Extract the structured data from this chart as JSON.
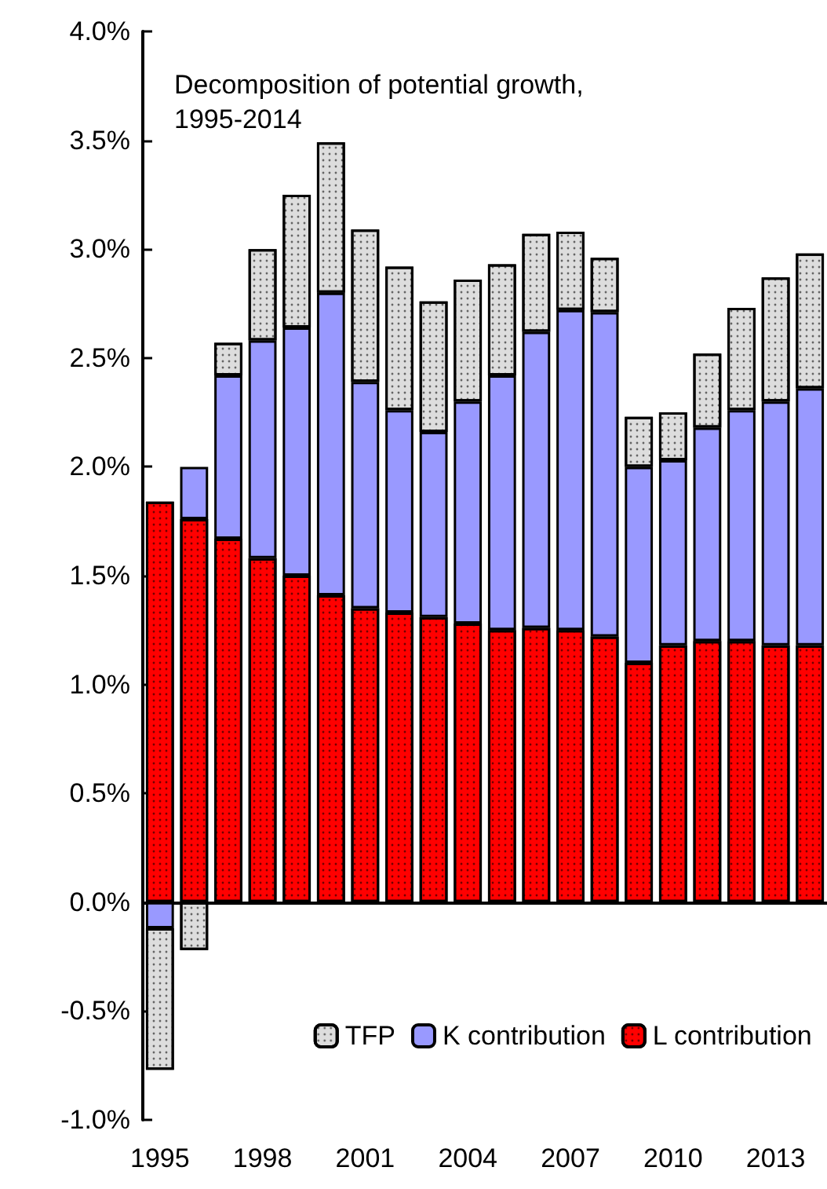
{
  "chart_data": {
    "type": "bar",
    "title": "Decomposition of potential growth, 1995-2014",
    "categories": [
      "1995",
      null,
      null,
      "1998",
      null,
      null,
      "2001",
      null,
      null,
      "2004",
      null,
      null,
      "2007",
      null,
      null,
      "2010",
      null,
      null,
      "2013",
      null
    ],
    "stacked": true,
    "series": [
      {
        "name": "L contribution",
        "color": "#ff0000",
        "values": [
          1.84,
          1.76,
          1.67,
          1.58,
          1.5,
          1.41,
          1.35,
          1.33,
          1.31,
          1.28,
          1.25,
          1.26,
          1.25,
          1.22,
          1.1,
          1.18,
          1.2,
          1.2,
          1.18,
          1.18
        ]
      },
      {
        "name": "K contribution",
        "color": "#9999ff",
        "values": [
          -0.12,
          0.24,
          0.75,
          1.0,
          1.14,
          1.39,
          1.04,
          0.93,
          0.85,
          1.02,
          1.17,
          1.36,
          1.47,
          1.49,
          0.9,
          0.85,
          0.98,
          1.06,
          1.12,
          1.18
        ]
      },
      {
        "name": "TFP",
        "color": "#dddddd",
        "values": [
          -0.65,
          -0.22,
          0.15,
          0.42,
          0.61,
          0.69,
          0.7,
          0.66,
          0.6,
          0.56,
          0.51,
          0.45,
          0.36,
          0.25,
          0.23,
          0.22,
          0.34,
          0.47,
          0.57,
          0.62
        ]
      }
    ],
    "ylim": [
      -1.0,
      4.0
    ],
    "yticks": [
      {
        "value": -1.0,
        "label": "-1.0%"
      },
      {
        "value": -0.5,
        "label": "-0.5%"
      },
      {
        "value": 0,
        "label": "0.0%"
      },
      {
        "value": 0.5,
        "label": "0.5%"
      },
      {
        "value": 1.0,
        "label": "1.0%"
      },
      {
        "value": 1.5,
        "label": "1.5%"
      },
      {
        "value": 2.0,
        "label": "2.0%"
      },
      {
        "value": 2.5,
        "label": "2.5%"
      },
      {
        "value": 3.0,
        "label": "3.0%"
      },
      {
        "value": 3.5,
        "label": "3.5%"
      },
      {
        "value": 4.0,
        "label": "4.0%"
      }
    ],
    "legend": "bottom right"
  }
}
